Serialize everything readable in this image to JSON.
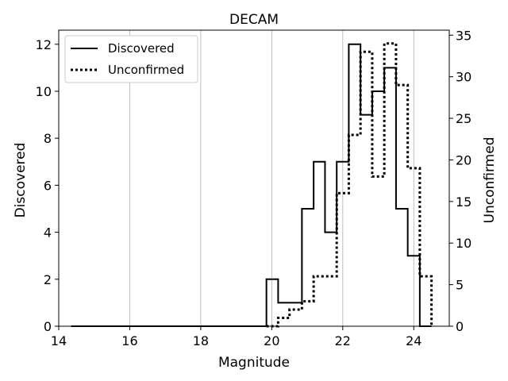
{
  "chart_data": {
    "type": "histogram",
    "title": "DECAM",
    "xlabel": "Magnitude",
    "ylabel_left": "Discovered",
    "ylabel_right": "Unconfirmed",
    "xlim": [
      14,
      25
    ],
    "ylim_left": [
      0,
      12.6
    ],
    "ylim_right": [
      0,
      35.6
    ],
    "x_ticks": [
      14,
      16,
      18,
      20,
      22,
      24
    ],
    "y_ticks_left": [
      0,
      2,
      4,
      6,
      8,
      10,
      12
    ],
    "y_ticks_right": [
      0,
      5,
      10,
      15,
      20,
      25,
      30,
      35
    ],
    "x_grid": true,
    "legend_position": "top-left",
    "series": [
      {
        "name": "Discovered",
        "axis": "left",
        "style": "solid",
        "step_x": [
          14.35,
          19.85,
          20.18,
          20.85,
          21.18,
          21.5,
          21.83,
          22.17,
          22.5,
          22.83,
          23.17,
          23.5,
          23.83,
          24.17,
          24.5
        ],
        "step_y": [
          0,
          2,
          1,
          5,
          7,
          4,
          7,
          12,
          9,
          10,
          11,
          5,
          3,
          0
        ]
      },
      {
        "name": "Unconfirmed",
        "axis": "right",
        "style": "dotted",
        "step_x": [
          19.85,
          20.18,
          20.5,
          20.85,
          21.18,
          21.5,
          21.83,
          22.17,
          22.5,
          22.83,
          23.17,
          23.5,
          23.83,
          24.17,
          24.5
        ],
        "step_y": [
          0,
          1,
          2,
          3,
          6,
          6,
          16,
          23,
          33,
          18,
          34,
          29,
          19,
          6
        ]
      }
    ]
  }
}
